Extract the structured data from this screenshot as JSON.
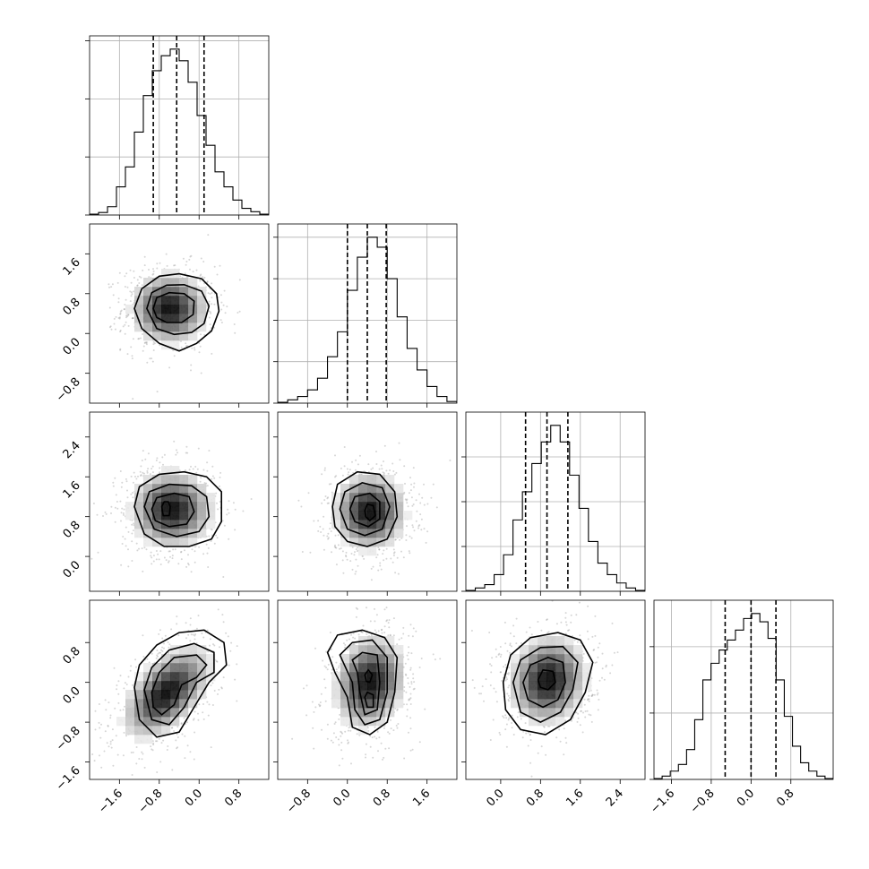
{
  "chart_data": {
    "type": "corner",
    "variables": [
      {
        "index": 0,
        "range": [
          -2.2,
          1.4
        ],
        "xticks": [
          "-1.6",
          "-0.8",
          "0.0",
          "0.8"
        ],
        "xtick_values": [
          -1.6,
          -0.8,
          0.0,
          0.8
        ],
        "yticks": [],
        "ytick_values": [],
        "hist_ymax": 1.08,
        "hist_yticks": [
          0.0,
          0.35,
          0.7,
          1.05
        ],
        "quantiles": [
          -0.92,
          -0.45,
          0.1
        ],
        "hist": [
          0.005,
          0.015,
          0.05,
          0.17,
          0.29,
          0.5,
          0.72,
          0.87,
          0.96,
          1.0,
          0.93,
          0.8,
          0.6,
          0.42,
          0.26,
          0.17,
          0.09,
          0.04,
          0.02,
          0.005
        ]
      },
      {
        "index": 1,
        "range": [
          -1.4,
          2.2
        ],
        "xticks": [
          "-0.8",
          "0.0",
          "0.8",
          "1.6"
        ],
        "xtick_values": [
          -0.8,
          0.0,
          0.8,
          1.6
        ],
        "yticks": [
          "-0.8",
          "0.0",
          "0.8",
          "1.6"
        ],
        "ytick_values": [
          -0.8,
          0.0,
          0.8,
          1.6
        ],
        "hist_ymax": 1.08,
        "hist_yticks": [
          0.0,
          0.25,
          0.5,
          0.75,
          1.0
        ],
        "quantiles": [
          0.0,
          0.4,
          0.78
        ],
        "hist": [
          0.005,
          0.02,
          0.04,
          0.08,
          0.15,
          0.28,
          0.43,
          0.68,
          0.88,
          1.0,
          0.94,
          0.75,
          0.52,
          0.33,
          0.2,
          0.1,
          0.04,
          0.01
        ]
      },
      {
        "index": 2,
        "range": [
          -0.7,
          2.9
        ],
        "xticks": [
          "0.0",
          "0.8",
          "1.6",
          "2.4"
        ],
        "xtick_values": [
          0.0,
          0.8,
          1.6,
          2.4
        ],
        "yticks": [
          "0.0",
          "0.8",
          "1.6",
          "2.4"
        ],
        "ytick_values": [
          0.0,
          0.8,
          1.6,
          2.4
        ],
        "hist_ymax": 1.08,
        "hist_yticks": [
          0.0,
          0.27,
          0.54,
          0.81
        ],
        "quantiles": [
          0.5,
          0.93,
          1.35
        ],
        "hist": [
          0.005,
          0.02,
          0.04,
          0.1,
          0.22,
          0.43,
          0.6,
          0.77,
          0.9,
          1.0,
          0.9,
          0.7,
          0.5,
          0.3,
          0.17,
          0.1,
          0.05,
          0.02,
          0.005
        ]
      },
      {
        "index": 3,
        "range": [
          -1.95,
          1.65
        ],
        "xticks": [
          "-1.6",
          "-0.8",
          "0.0",
          "0.8"
        ],
        "xtick_values": [
          -1.6,
          -0.8,
          0.0,
          0.8
        ],
        "yticks": [
          "-1.6",
          "-0.8",
          "0.0",
          "0.8"
        ],
        "ytick_values": [
          -1.6,
          -0.8,
          0.0,
          0.8
        ],
        "hist_ymax": 1.08,
        "hist_yticks": [
          0.0,
          0.4,
          0.8
        ],
        "quantiles": [
          -0.52,
          0.0,
          0.5
        ],
        "hist": [
          0.005,
          0.02,
          0.05,
          0.09,
          0.18,
          0.36,
          0.6,
          0.7,
          0.78,
          0.84,
          0.9,
          0.97,
          1.0,
          0.95,
          0.85,
          0.6,
          0.38,
          0.2,
          0.1,
          0.05,
          0.02,
          0.005
        ]
      }
    ],
    "pairs": [
      {
        "row": 1,
        "col": 0,
        "peak": [
          -0.6,
          0.5
        ],
        "spread": [
          0.35,
          0.32
        ],
        "rho": 0.0,
        "contours": [
          [
            [
              -1.3,
              0.5
            ],
            [
              -1.15,
              0.9
            ],
            [
              -0.8,
              1.15
            ],
            [
              -0.4,
              1.2
            ],
            [
              0.05,
              1.1
            ],
            [
              0.35,
              0.8
            ],
            [
              0.4,
              0.45
            ],
            [
              0.25,
              0.05
            ],
            [
              -0.05,
              -0.2
            ],
            [
              -0.4,
              -0.35
            ],
            [
              -0.8,
              -0.2
            ],
            [
              -1.15,
              0.1
            ]
          ],
          [
            [
              -1.05,
              0.5
            ],
            [
              -0.95,
              0.82
            ],
            [
              -0.65,
              0.97
            ],
            [
              -0.3,
              0.98
            ],
            [
              0.05,
              0.85
            ],
            [
              0.2,
              0.55
            ],
            [
              0.1,
              0.2
            ],
            [
              -0.15,
              0.02
            ],
            [
              -0.5,
              -0.02
            ],
            [
              -0.85,
              0.1
            ]
          ],
          [
            [
              -0.92,
              0.5
            ],
            [
              -0.85,
              0.72
            ],
            [
              -0.6,
              0.82
            ],
            [
              -0.3,
              0.8
            ],
            [
              -0.1,
              0.65
            ],
            [
              -0.12,
              0.38
            ],
            [
              -0.35,
              0.22
            ],
            [
              -0.65,
              0.22
            ],
            [
              -0.85,
              0.32
            ]
          ]
        ]
      },
      {
        "row": 2,
        "col": 0,
        "peak": [
          -0.55,
          0.95
        ],
        "spread": [
          0.37,
          0.35
        ],
        "rho": 0.0,
        "contours": [
          [
            [
              -1.3,
              1.0
            ],
            [
              -1.2,
              1.4
            ],
            [
              -0.8,
              1.65
            ],
            [
              -0.3,
              1.7
            ],
            [
              0.15,
              1.6
            ],
            [
              0.45,
              1.3
            ],
            [
              0.45,
              0.7
            ],
            [
              0.25,
              0.35
            ],
            [
              -0.2,
              0.2
            ],
            [
              -0.7,
              0.2
            ],
            [
              -1.1,
              0.45
            ]
          ],
          [
            [
              -1.1,
              1.0
            ],
            [
              -1.0,
              1.3
            ],
            [
              -0.6,
              1.45
            ],
            [
              -0.15,
              1.42
            ],
            [
              0.15,
              1.2
            ],
            [
              0.2,
              0.8
            ],
            [
              0.0,
              0.5
            ],
            [
              -0.45,
              0.4
            ],
            [
              -0.9,
              0.55
            ]
          ],
          [
            [
              -0.95,
              0.95
            ],
            [
              -0.85,
              1.18
            ],
            [
              -0.5,
              1.27
            ],
            [
              -0.2,
              1.2
            ],
            [
              -0.1,
              0.9
            ],
            [
              -0.25,
              0.65
            ],
            [
              -0.6,
              0.6
            ],
            [
              -0.88,
              0.72
            ]
          ],
          [
            [
              -0.75,
              1.0
            ],
            [
              -0.7,
              1.1
            ],
            [
              -0.62,
              1.1
            ],
            [
              -0.58,
              1.0
            ],
            [
              -0.6,
              0.82
            ],
            [
              -0.72,
              0.82
            ]
          ]
        ]
      },
      {
        "row": 2,
        "col": 1,
        "peak": [
          0.45,
          0.9
        ],
        "spread": [
          0.33,
          0.35
        ],
        "rho": 0.0,
        "contours": [
          [
            [
              -0.3,
              1.0
            ],
            [
              -0.2,
              1.45
            ],
            [
              0.2,
              1.7
            ],
            [
              0.65,
              1.65
            ],
            [
              0.95,
              1.3
            ],
            [
              1.0,
              0.8
            ],
            [
              0.8,
              0.35
            ],
            [
              0.4,
              0.2
            ],
            [
              0.0,
              0.3
            ],
            [
              -0.25,
              0.6
            ]
          ],
          [
            [
              -0.15,
              0.95
            ],
            [
              -0.05,
              1.3
            ],
            [
              0.3,
              1.48
            ],
            [
              0.7,
              1.38
            ],
            [
              0.85,
              1.0
            ],
            [
              0.7,
              0.55
            ],
            [
              0.35,
              0.42
            ],
            [
              0.0,
              0.55
            ]
          ],
          [
            [
              0.05,
              0.95
            ],
            [
              0.15,
              1.2
            ],
            [
              0.45,
              1.27
            ],
            [
              0.65,
              1.1
            ],
            [
              0.65,
              0.75
            ],
            [
              0.42,
              0.6
            ],
            [
              0.15,
              0.7
            ]
          ],
          [
            [
              0.35,
              0.92
            ],
            [
              0.4,
              1.05
            ],
            [
              0.52,
              1.02
            ],
            [
              0.56,
              0.82
            ],
            [
              0.45,
              0.72
            ],
            [
              0.37,
              0.8
            ]
          ]
        ]
      },
      {
        "row": 3,
        "col": 0,
        "peak": [
          -0.65,
          -0.2
        ],
        "spread": [
          0.4,
          0.42
        ],
        "rho": 0.55,
        "contours": [
          [
            [
              -1.3,
              -0.1
            ],
            [
              -1.2,
              0.35
            ],
            [
              -0.85,
              0.75
            ],
            [
              -0.4,
              1.0
            ],
            [
              0.1,
              1.05
            ],
            [
              0.5,
              0.8
            ],
            [
              0.55,
              0.35
            ],
            [
              0.2,
              0.0
            ],
            [
              -0.1,
              -0.5
            ],
            [
              -0.4,
              -1.0
            ],
            [
              -0.85,
              -1.1
            ],
            [
              -1.2,
              -0.75
            ]
          ],
          [
            [
              -1.1,
              -0.15
            ],
            [
              -0.95,
              0.3
            ],
            [
              -0.6,
              0.65
            ],
            [
              -0.1,
              0.78
            ],
            [
              0.3,
              0.6
            ],
            [
              0.3,
              0.2
            ],
            [
              -0.05,
              0.0
            ],
            [
              -0.3,
              -0.5
            ],
            [
              -0.6,
              -0.85
            ],
            [
              -0.95,
              -0.75
            ]
          ],
          [
            [
              -0.95,
              -0.2
            ],
            [
              -0.8,
              0.2
            ],
            [
              -0.5,
              0.5
            ],
            [
              -0.05,
              0.55
            ],
            [
              0.15,
              0.35
            ],
            [
              -0.05,
              0.1
            ],
            [
              -0.35,
              -0.05
            ],
            [
              -0.5,
              -0.45
            ],
            [
              -0.75,
              -0.65
            ],
            [
              -0.92,
              -0.5
            ]
          ]
        ]
      },
      {
        "row": 3,
        "col": 1,
        "peak": [
          0.45,
          0.0
        ],
        "spread": [
          0.32,
          0.42
        ],
        "rho": 0.15,
        "contours": [
          [
            [
              -0.4,
              0.6
            ],
            [
              -0.2,
              0.95
            ],
            [
              0.3,
              1.05
            ],
            [
              0.75,
              0.9
            ],
            [
              1.0,
              0.5
            ],
            [
              0.95,
              -0.2
            ],
            [
              0.8,
              -0.8
            ],
            [
              0.45,
              -1.05
            ],
            [
              0.1,
              -0.9
            ],
            [
              0.0,
              -0.3
            ],
            [
              -0.25,
              0.2
            ]
          ],
          [
            [
              -0.15,
              0.55
            ],
            [
              0.1,
              0.8
            ],
            [
              0.5,
              0.85
            ],
            [
              0.8,
              0.5
            ],
            [
              0.8,
              -0.2
            ],
            [
              0.65,
              -0.75
            ],
            [
              0.35,
              -0.85
            ],
            [
              0.15,
              -0.55
            ],
            [
              0.1,
              0.0
            ]
          ],
          [
            [
              0.1,
              0.45
            ],
            [
              0.3,
              0.6
            ],
            [
              0.6,
              0.55
            ],
            [
              0.65,
              0.0
            ],
            [
              0.6,
              -0.55
            ],
            [
              0.35,
              -0.65
            ],
            [
              0.25,
              -0.2
            ],
            [
              0.2,
              0.2
            ]
          ],
          [
            [
              0.35,
              0.15
            ],
            [
              0.42,
              0.25
            ],
            [
              0.5,
              0.15
            ],
            [
              0.45,
              0.0
            ],
            [
              0.38,
              0.02
            ]
          ],
          [
            [
              0.35,
              -0.3
            ],
            [
              0.4,
              -0.2
            ],
            [
              0.52,
              -0.25
            ],
            [
              0.52,
              -0.5
            ],
            [
              0.4,
              -0.5
            ]
          ]
        ]
      },
      {
        "row": 3,
        "col": 2,
        "peak": [
          0.95,
          0.05
        ],
        "spread": [
          0.35,
          0.4
        ],
        "rho": 0.1,
        "contours": [
          [
            [
              0.05,
              0.0
            ],
            [
              0.2,
              0.55
            ],
            [
              0.6,
              0.9
            ],
            [
              1.15,
              1.0
            ],
            [
              1.6,
              0.85
            ],
            [
              1.85,
              0.4
            ],
            [
              1.7,
              -0.2
            ],
            [
              1.4,
              -0.75
            ],
            [
              0.9,
              -1.05
            ],
            [
              0.4,
              -0.95
            ],
            [
              0.1,
              -0.55
            ]
          ],
          [
            [
              0.25,
              0.0
            ],
            [
              0.4,
              0.45
            ],
            [
              0.8,
              0.7
            ],
            [
              1.25,
              0.72
            ],
            [
              1.55,
              0.4
            ],
            [
              1.45,
              -0.15
            ],
            [
              1.2,
              -0.6
            ],
            [
              0.8,
              -0.8
            ],
            [
              0.4,
              -0.6
            ]
          ],
          [
            [
              0.45,
              0.0
            ],
            [
              0.6,
              0.35
            ],
            [
              0.95,
              0.5
            ],
            [
              1.25,
              0.4
            ],
            [
              1.3,
              0.0
            ],
            [
              1.15,
              -0.35
            ],
            [
              0.85,
              -0.5
            ],
            [
              0.55,
              -0.35
            ]
          ],
          [
            [
              0.75,
              0.05
            ],
            [
              0.85,
              0.25
            ],
            [
              1.05,
              0.22
            ],
            [
              1.1,
              0.0
            ],
            [
              0.95,
              -0.15
            ],
            [
              0.8,
              -0.1
            ]
          ]
        ]
      }
    ]
  }
}
